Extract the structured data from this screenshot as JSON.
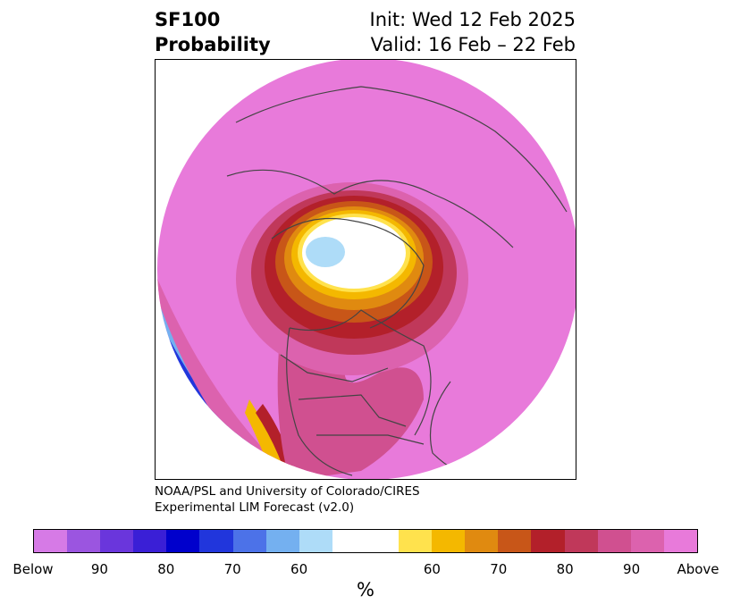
{
  "title": {
    "left_line1": "SF100",
    "left_line2": "Probability",
    "right_line1": "Init: Wed 12 Feb 2025",
    "right_line2": "Valid: 16 Feb – 22 Feb"
  },
  "credit": {
    "line1": "NOAA/PSL and University of Colorado/CIRES",
    "line2": "Experimental LIM Forecast (v2.0)"
  },
  "map": {
    "projection": "north-polar-stereographic",
    "coast_color": "#444444"
  },
  "colorbar": {
    "unit": "%",
    "colors": [
      "#d67ae6",
      "#9b55e0",
      "#6a36dc",
      "#3a1fd6",
      "#0000cc",
      "#2136dc",
      "#4c72e8",
      "#74b0f0",
      "#aedcf8",
      "#ffffff",
      "#ffe24d",
      "#f4b800",
      "#e08a10",
      "#c85618",
      "#b3202a",
      "#c0385a",
      "#d05090",
      "#dc62ae",
      "#e87ada"
    ],
    "widths": [
      1,
      1,
      1,
      1,
      1,
      1,
      1,
      1,
      1,
      2,
      1,
      1,
      1,
      1,
      1,
      1,
      1,
      1,
      1
    ],
    "ticks": [
      "Below",
      "90",
      "80",
      "70",
      "60",
      "60",
      "70",
      "80",
      "90",
      "Above"
    ]
  }
}
